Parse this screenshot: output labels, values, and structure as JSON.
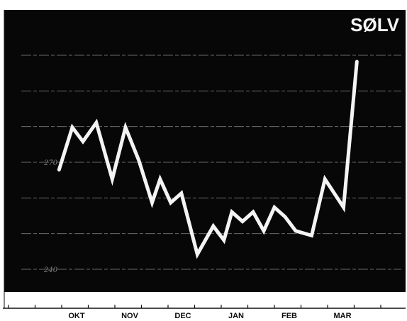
{
  "chart_data": {
    "type": "line",
    "title": "SØLV",
    "subtitle": "",
    "xlabel": "",
    "ylabel": "",
    "categories": [
      "OKT",
      "NOV",
      "DEC",
      "JAN",
      "FEB",
      "MAR"
    ],
    "y_ticks": [
      "",
      "",
      "",
      "270",
      "",
      "",
      "240"
    ],
    "ylim": [
      240,
      300
    ],
    "grid": true,
    "series": [
      {
        "values": [
          {
            "x": 0.75,
            "y": 266
          },
          {
            "x": 1.0,
            "y": 275
          },
          {
            "x": 1.2,
            "y": 272
          },
          {
            "x": 1.45,
            "y": 276
          },
          {
            "x": 1.75,
            "y": 264
          },
          {
            "x": 2.0,
            "y": 275
          },
          {
            "x": 2.25,
            "y": 268
          },
          {
            "x": 2.5,
            "y": 259
          },
          {
            "x": 2.65,
            "y": 264
          },
          {
            "x": 2.85,
            "y": 259
          },
          {
            "x": 3.05,
            "y": 261
          },
          {
            "x": 3.35,
            "y": 248
          },
          {
            "x": 3.65,
            "y": 254
          },
          {
            "x": 3.85,
            "y": 251
          },
          {
            "x": 4.0,
            "y": 257
          },
          {
            "x": 4.2,
            "y": 255
          },
          {
            "x": 4.4,
            "y": 257
          },
          {
            "x": 4.6,
            "y": 253
          },
          {
            "x": 4.8,
            "y": 258
          },
          {
            "x": 5.0,
            "y": 256
          },
          {
            "x": 5.2,
            "y": 253
          },
          {
            "x": 5.5,
            "y": 252
          },
          {
            "x": 5.75,
            "y": 264
          },
          {
            "x": 6.1,
            "y": 258
          },
          {
            "x": 6.35,
            "y": 289
          }
        ]
      }
    ]
  }
}
